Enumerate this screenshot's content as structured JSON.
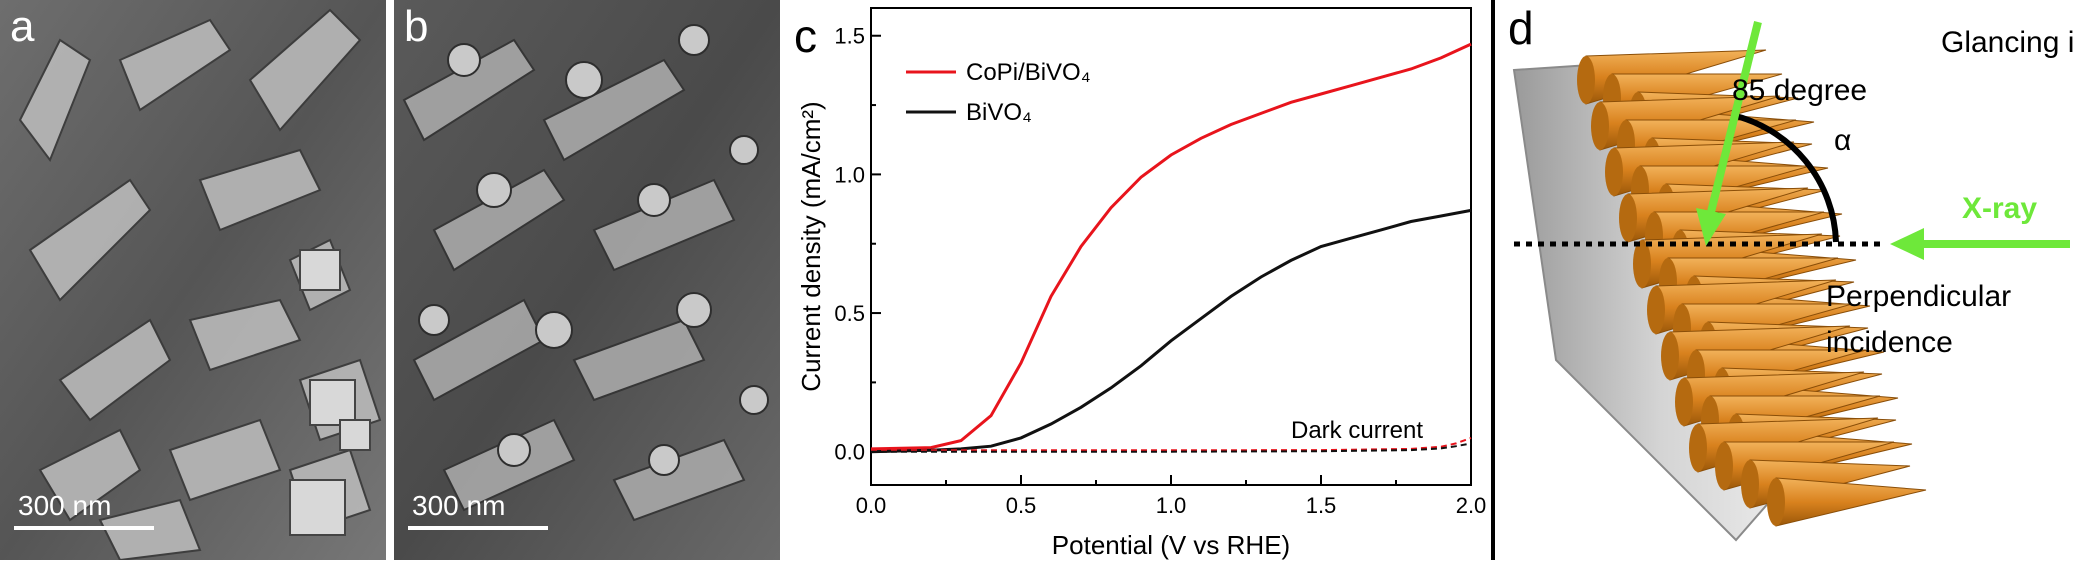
{
  "panels": {
    "a": {
      "label": "a",
      "scale_bar": "300 nm"
    },
    "b": {
      "label": "b",
      "scale_bar": "300 nm"
    },
    "c": {
      "label": "c"
    },
    "d": {
      "label": "d",
      "glancing_line1": "Glancing incidence",
      "glancing_line2": "85 degree",
      "alpha": "α",
      "xray": "X-ray",
      "perp_line1": "Perpendicular",
      "perp_line2": "incidence"
    }
  },
  "chart_data": {
    "type": "line",
    "xlabel": "Potential (V vs RHE)",
    "ylabel": "Current density (mA/cm²)",
    "xlim": [
      0,
      2.0
    ],
    "ylim": [
      -0.12,
      1.6
    ],
    "xticks": [
      "0.0",
      "0.5",
      "1.0",
      "1.5",
      "2.0"
    ],
    "yticks": [
      "0.0",
      "0.5",
      "1.0",
      "1.5"
    ],
    "annotation": "Dark current",
    "series": [
      {
        "name": "CoPi/BiVO₄",
        "color": "#e8141c",
        "style": "solid",
        "x": [
          0.0,
          0.2,
          0.3,
          0.4,
          0.5,
          0.6,
          0.7,
          0.8,
          0.9,
          1.0,
          1.1,
          1.2,
          1.3,
          1.4,
          1.5,
          1.6,
          1.7,
          1.8,
          1.9,
          2.0
        ],
        "y": [
          0.01,
          0.015,
          0.04,
          0.13,
          0.32,
          0.56,
          0.74,
          0.88,
          0.99,
          1.07,
          1.13,
          1.18,
          1.22,
          1.26,
          1.29,
          1.32,
          1.35,
          1.38,
          1.42,
          1.47
        ]
      },
      {
        "name": "BiVO₄",
        "color": "#111111",
        "style": "solid",
        "x": [
          0.0,
          0.2,
          0.3,
          0.4,
          0.5,
          0.6,
          0.7,
          0.8,
          0.9,
          1.0,
          1.1,
          1.2,
          1.3,
          1.4,
          1.5,
          1.6,
          1.7,
          1.8,
          1.9,
          2.0
        ],
        "y": [
          0.0,
          0.005,
          0.01,
          0.02,
          0.05,
          0.1,
          0.16,
          0.23,
          0.31,
          0.4,
          0.48,
          0.56,
          0.63,
          0.69,
          0.74,
          0.77,
          0.8,
          0.83,
          0.85,
          0.87
        ]
      },
      {
        "name": "Dark current (CoPi/BiVO₄)",
        "color": "#e8141c",
        "style": "dashed",
        "x": [
          0.0,
          0.5,
          1.0,
          1.5,
          1.8,
          1.9,
          1.95,
          2.0
        ],
        "y": [
          0.005,
          0.005,
          0.005,
          0.006,
          0.01,
          0.018,
          0.03,
          0.05
        ]
      },
      {
        "name": "Dark current (BiVO₄)",
        "color": "#111111",
        "style": "dashed",
        "x": [
          0.0,
          0.5,
          1.0,
          1.5,
          1.8,
          1.9,
          1.95,
          2.0
        ],
        "y": [
          0.0,
          0.0,
          0.0,
          0.002,
          0.006,
          0.012,
          0.02,
          0.03
        ]
      }
    ]
  }
}
